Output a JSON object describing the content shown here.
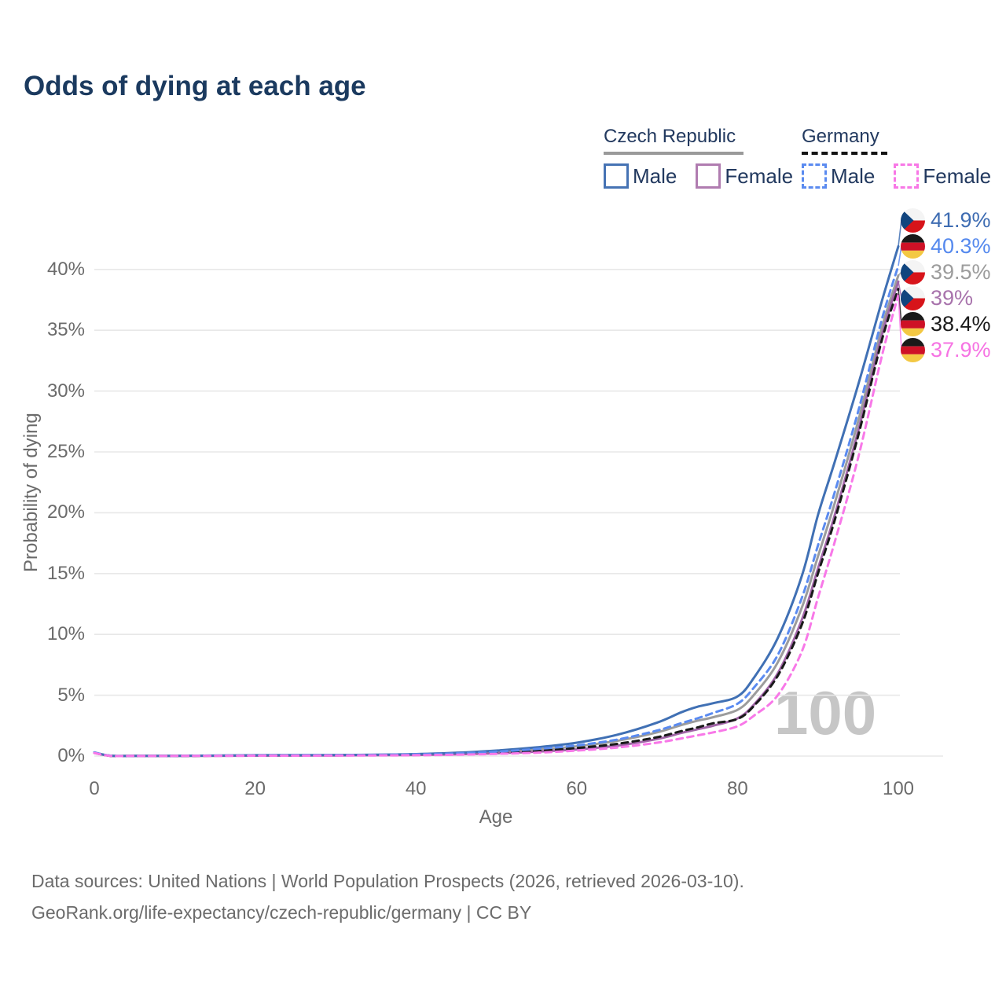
{
  "title": "Odds of dying at each age",
  "legend": {
    "groups": [
      {
        "id": "czech-republic",
        "label": "Czech Republic",
        "line_style": "solid",
        "underline_color": "#9a9a9a",
        "items": [
          {
            "id": "cz-male",
            "label": "Male",
            "color": "#4673b4",
            "dashed": false
          },
          {
            "id": "cz-female",
            "label": "Female",
            "color": "#b07cb0",
            "dashed": false
          }
        ]
      },
      {
        "id": "germany",
        "label": "Germany",
        "line_style": "dashed",
        "underline_color": "#141414",
        "items": [
          {
            "id": "de-male",
            "label": "Male",
            "color": "#5b8bf0",
            "dashed": true
          },
          {
            "id": "de-female",
            "label": "Female",
            "color": "#f878e6",
            "dashed": true
          }
        ]
      }
    ]
  },
  "chart_data": {
    "type": "line",
    "title": "Odds of dying at each age",
    "xlabel": "Age",
    "ylabel": "Probability of dying",
    "xlim": [
      0,
      100
    ],
    "ylim_pct": [
      0,
      44
    ],
    "grid": "horizontal",
    "legend_position": "top-right",
    "x_ticks": [
      0,
      20,
      40,
      60,
      80,
      100
    ],
    "y_ticks_pct": [
      0,
      5,
      10,
      15,
      20,
      25,
      30,
      35,
      40
    ],
    "y_tick_labels": [
      "0%",
      "5%",
      "10%",
      "15%",
      "20%",
      "25%",
      "30%",
      "35%",
      "40%"
    ],
    "hover_age_indicator": "100",
    "x": [
      0,
      2,
      5,
      10,
      15,
      20,
      25,
      30,
      35,
      40,
      45,
      50,
      55,
      60,
      65,
      70,
      73,
      75,
      77,
      80,
      82,
      85,
      88,
      90,
      92,
      95,
      98,
      100
    ],
    "series": [
      {
        "name": "Czech Republic Male",
        "country": "Czech Republic",
        "sex": "Male",
        "color": "#4070b4",
        "label_color": "#3e6cb2",
        "dash": "solid",
        "flag": "cz",
        "end_value_pct": 41.9,
        "end_label": "41.9%",
        "values_pct": [
          0.3,
          0.03,
          0.02,
          0.02,
          0.04,
          0.07,
          0.08,
          0.09,
          0.11,
          0.16,
          0.27,
          0.45,
          0.72,
          1.1,
          1.75,
          2.75,
          3.6,
          4.05,
          4.35,
          4.9,
          6.4,
          9.7,
          14.8,
          19.8,
          24.0,
          30.5,
          37.5,
          41.9
        ]
      },
      {
        "name": "Germany Male",
        "country": "Germany",
        "sex": "Male",
        "color": "#5b8bf0",
        "label_color": "#5589ee",
        "dash": "dashed",
        "flag": "de",
        "end_value_pct": 40.3,
        "end_label": "40.3%",
        "values_pct": [
          0.3,
          0.03,
          0.02,
          0.02,
          0.04,
          0.06,
          0.07,
          0.08,
          0.1,
          0.14,
          0.22,
          0.36,
          0.58,
          0.88,
          1.35,
          2.1,
          2.7,
          3.1,
          3.55,
          4.3,
          5.6,
          8.3,
          13.0,
          17.3,
          21.5,
          28.3,
          36.0,
          40.3
        ]
      },
      {
        "name": "Czech Republic Both sexes",
        "country": "Czech Republic",
        "sex": "Both",
        "color": "#9c9c9c",
        "label_color": "#9c9c9c",
        "dash": "solid",
        "flag": "cz",
        "end_value_pct": 39.5,
        "end_label": "39.5%",
        "values_pct": [
          0.28,
          0.03,
          0.02,
          0.02,
          0.03,
          0.05,
          0.06,
          0.07,
          0.09,
          0.12,
          0.2,
          0.33,
          0.52,
          0.8,
          1.25,
          1.95,
          2.55,
          2.9,
          3.2,
          3.8,
          5.0,
          7.7,
          12.2,
          16.4,
          20.6,
          27.5,
          35.3,
          39.5
        ]
      },
      {
        "name": "Czech Republic Female",
        "country": "Czech Republic",
        "sex": "Female",
        "color": "#a165a8",
        "label_color": "#a873ac",
        "dash": "solid",
        "flag": "cz",
        "end_value_pct": 39.0,
        "end_label": "39%",
        "values_pct": [
          0.26,
          0.02,
          0.01,
          0.01,
          0.02,
          0.03,
          0.04,
          0.05,
          0.07,
          0.09,
          0.14,
          0.23,
          0.36,
          0.55,
          0.85,
          1.4,
          1.9,
          2.2,
          2.5,
          3.1,
          4.2,
          6.8,
          11.2,
          15.4,
          19.6,
          26.7,
          34.7,
          39.0
        ]
      },
      {
        "name": "Germany Both sexes",
        "country": "Germany",
        "sex": "Both",
        "color": "#1a1a1a",
        "label_color": "#1a1a1a",
        "dash": "dashed",
        "flag": "de",
        "end_value_pct": 38.4,
        "end_label": "38.4%",
        "values_pct": [
          0.27,
          0.02,
          0.01,
          0.01,
          0.03,
          0.04,
          0.05,
          0.06,
          0.08,
          0.1,
          0.16,
          0.26,
          0.42,
          0.66,
          1.0,
          1.55,
          2.05,
          2.35,
          2.7,
          3.05,
          4.1,
          6.6,
          10.8,
          15.0,
          19.2,
          26.3,
          34.3,
          38.4
        ]
      },
      {
        "name": "Germany Female",
        "country": "Germany",
        "sex": "Female",
        "color": "#f878e8",
        "label_color": "#f673e3",
        "dash": "dashed",
        "flag": "de",
        "end_value_pct": 37.9,
        "end_label": "37.9%",
        "values_pct": [
          0.25,
          0.02,
          0.01,
          0.01,
          0.02,
          0.03,
          0.03,
          0.04,
          0.05,
          0.07,
          0.11,
          0.18,
          0.28,
          0.45,
          0.7,
          1.1,
          1.45,
          1.7,
          1.95,
          2.45,
          3.3,
          5.0,
          8.6,
          13.0,
          17.4,
          24.5,
          33.0,
          37.9
        ]
      }
    ]
  },
  "watermark": "100",
  "footer": {
    "line1": "Data sources: United Nations | World Population Prospects (2026, retrieved 2026-03-10).",
    "line2": "GeoRank.org/life-expectancy/czech-republic/germany | CC BY"
  },
  "colors": {
    "title": "#1b3a5f",
    "legend_text": "#22395f",
    "axis_text": "#6b6b6b",
    "gridline": "#e8e8e8",
    "watermark": "#c6c6c6",
    "czech_flag": {
      "blue": "#11457e",
      "red": "#d7141a",
      "white": "#f4f4f4"
    },
    "german_flag": {
      "black": "#191919",
      "red": "#ce1126",
      "gold": "#f3c843"
    }
  }
}
